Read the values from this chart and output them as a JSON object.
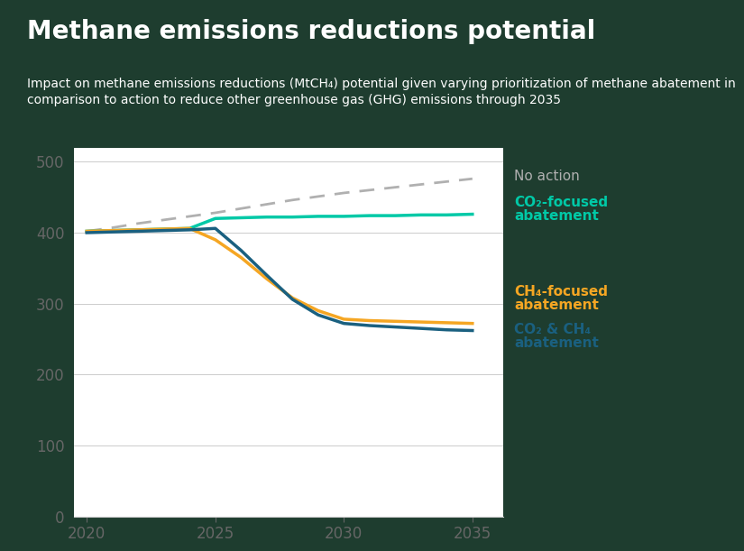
{
  "title": "Methane emissions reductions potential",
  "subtitle": "Impact on methane emissions reductions (MtCH₄) potential given varying prioritization of methane abatement in\ncomparison to action to reduce other greenhouse gas (GHG) emissions through 2035",
  "background_color": "#1e3d2f",
  "plot_background": "#ffffff",
  "title_color": "#ffffff",
  "subtitle_color": "#ffffff",
  "ylim": [
    0,
    520
  ],
  "yticks": [
    0,
    100,
    200,
    300,
    400,
    500
  ],
  "xlim": [
    2019.5,
    2036.2
  ],
  "xticks": [
    2020,
    2025,
    2030,
    2035
  ],
  "no_action": {
    "x": [
      2020,
      2021,
      2022,
      2023,
      2024,
      2025,
      2026,
      2027,
      2028,
      2029,
      2030,
      2031,
      2032,
      2033,
      2034,
      2035
    ],
    "y": [
      402,
      407,
      413,
      418,
      423,
      428,
      434,
      440,
      446,
      451,
      456,
      460,
      464,
      468,
      472,
      476
    ],
    "color": "#b0b0b0",
    "linestyle": "dashed",
    "linewidth": 2.0,
    "label": "No action"
  },
  "co2_focused": {
    "x": [
      2020,
      2021,
      2022,
      2023,
      2024,
      2025,
      2026,
      2027,
      2028,
      2029,
      2030,
      2031,
      2032,
      2033,
      2034,
      2035
    ],
    "y": [
      402,
      403,
      404,
      405,
      406,
      420,
      421,
      422,
      422,
      423,
      423,
      424,
      424,
      425,
      425,
      426
    ],
    "color": "#00c9a7",
    "linestyle": "solid",
    "linewidth": 2.5,
    "label_line1": "CO₂-focused",
    "label_line2": "abatement"
  },
  "ch4_focused": {
    "x": [
      2020,
      2021,
      2022,
      2023,
      2024,
      2025,
      2026,
      2027,
      2028,
      2029,
      2030,
      2031,
      2032,
      2033,
      2034,
      2035
    ],
    "y": [
      402,
      403,
      404,
      405,
      406,
      390,
      365,
      335,
      308,
      290,
      278,
      276,
      275,
      274,
      273,
      272
    ],
    "color": "#f5a623",
    "linestyle": "solid",
    "linewidth": 2.5,
    "label_line1": "CH₄-focused",
    "label_line2": "abatement"
  },
  "co2_ch4": {
    "x": [
      2020,
      2021,
      2022,
      2023,
      2024,
      2025,
      2026,
      2027,
      2028,
      2029,
      2030,
      2031,
      2032,
      2033,
      2034,
      2035
    ],
    "y": [
      400,
      401,
      402,
      403,
      404,
      406,
      375,
      340,
      306,
      284,
      272,
      269,
      267,
      265,
      263,
      262
    ],
    "color": "#1a6080",
    "linestyle": "solid",
    "linewidth": 2.5,
    "label_line1": "CO₂ & CH₄",
    "label_line2": "abatement"
  },
  "grid_color": "#cccccc",
  "tick_color": "#666666",
  "tick_fontsize": 12,
  "title_fontsize": 20,
  "subtitle_fontsize": 10,
  "label_fontsize": 11
}
